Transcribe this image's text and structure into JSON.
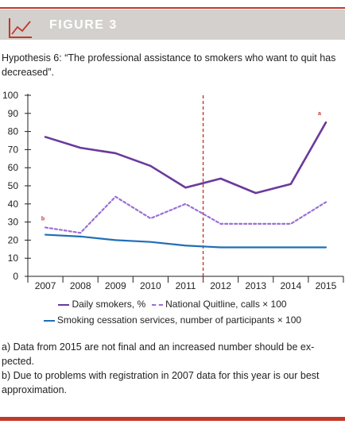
{
  "figure": {
    "title": "FIGURE 3",
    "hypothesis": "Hypothesis 6: “The professional assistance to smokers who want to quit has decreased”."
  },
  "colors": {
    "accent": "#c0392b",
    "header_bg": "#d3d0cd",
    "daily_smokers": "#6a3a9c",
    "quitline": "#9b6fd6",
    "cessation": "#1f6fb5",
    "marker": "#c0392b"
  },
  "chart_data": {
    "type": "line",
    "x": [
      "2007",
      "2008",
      "2009",
      "2010",
      "2011",
      "2012",
      "2013",
      "2014",
      "2015"
    ],
    "ylim": [
      0,
      100
    ],
    "yticks": [
      0,
      10,
      20,
      30,
      40,
      50,
      60,
      70,
      80,
      90,
      100
    ],
    "grid": false,
    "legend_position": "bottom",
    "reference_line": {
      "after_category": "2011",
      "style": "dashed",
      "color": "#c0392b"
    },
    "series": [
      {
        "name": "Daily smokers, %",
        "style": "solid",
        "color": "#6a3a9c",
        "values": [
          77,
          71,
          68,
          61,
          49,
          54,
          46,
          51,
          85
        ]
      },
      {
        "name": "National Quitline, calls × 100",
        "style": "dashed",
        "color": "#9b6fd6",
        "values": [
          27,
          24,
          44,
          32,
          40,
          29,
          29,
          29,
          41
        ]
      },
      {
        "name": "Smoking cessation services, number of participants × 100",
        "style": "solid",
        "color": "#1f6fb5",
        "values": [
          23,
          22,
          20,
          19,
          17,
          16,
          16,
          16,
          16
        ]
      }
    ],
    "annotations": [
      {
        "text": "a",
        "x": "2015",
        "y": 85,
        "series": 0
      },
      {
        "text": "b",
        "x": "2007",
        "y": 27,
        "series": 1
      }
    ]
  },
  "notes": [
    "a) Data from 2015 are not final and an increased number should be ex-pected.",
    "b) Due to problems with registration in 2007 data for this year is our best approximation."
  ]
}
